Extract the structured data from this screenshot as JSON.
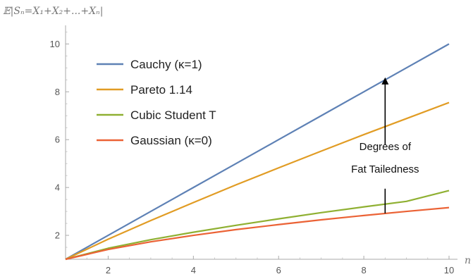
{
  "chart_data": {
    "type": "line",
    "ylabel": "𝔼|Sₙ=X₁+X₂+...+Xₙ|",
    "xlabel": "n",
    "xlim": [
      1,
      10
    ],
    "ylim": [
      1,
      10
    ],
    "x_ticks": [
      2,
      4,
      6,
      8,
      10
    ],
    "y_ticks": [
      2,
      4,
      6,
      8,
      10
    ],
    "grid": false,
    "legend_position": "top-left",
    "series": [
      {
        "name": "Cauchy (κ=1)",
        "color": "#5e81b5",
        "x": [
          1,
          2,
          3,
          4,
          5,
          6,
          7,
          8,
          9,
          10
        ],
        "y": [
          1,
          2,
          3,
          4,
          5,
          6,
          7,
          8,
          9,
          10
        ]
      },
      {
        "name": "Pareto 1.14",
        "color": "#e19c24",
        "x": [
          1,
          2,
          3,
          4,
          5,
          6,
          7,
          8,
          9,
          10
        ],
        "y": [
          1,
          1.84,
          2.62,
          3.37,
          4.11,
          4.82,
          5.52,
          6.21,
          6.88,
          7.55
        ]
      },
      {
        "name": "Cubic Student T",
        "color": "#8fb032",
        "x": [
          1,
          2,
          3,
          4,
          5,
          6,
          7,
          8,
          9,
          10
        ],
        "y": [
          1,
          1.46,
          1.82,
          2.13,
          2.42,
          2.69,
          2.95,
          3.19,
          3.42,
          3.87
        ]
      },
      {
        "name": "Gaussian (κ=0)",
        "color": "#eb6235",
        "x": [
          1,
          2,
          3,
          4,
          5,
          6,
          7,
          8,
          9,
          10
        ],
        "y": [
          1,
          1.41,
          1.73,
          2.0,
          2.24,
          2.45,
          2.65,
          2.83,
          3.0,
          3.16
        ]
      }
    ],
    "annotation": {
      "lines": [
        "Degrees of",
        "Fat Tailedness"
      ],
      "x": 8.5,
      "from_y": 2.92,
      "to_y": 8.6
    }
  }
}
